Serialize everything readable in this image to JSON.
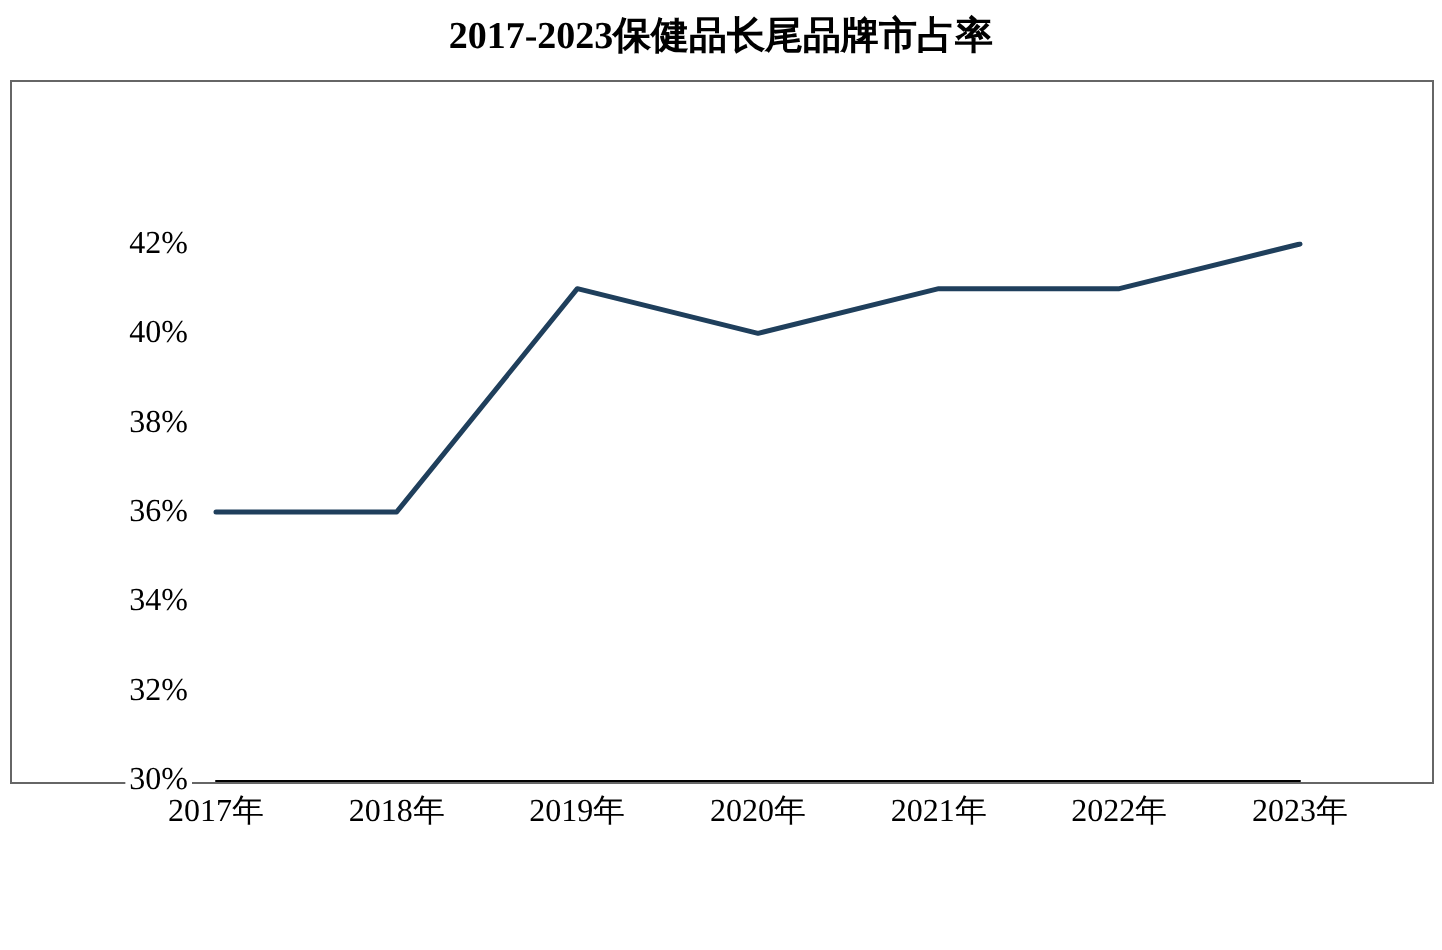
{
  "chart_data": {
    "type": "line",
    "title": "2017-2023保健品长尾品牌市占率",
    "categories": [
      "2017年",
      "2018年",
      "2019年",
      "2020年",
      "2021年",
      "2022年",
      "2023年"
    ],
    "series": [
      {
        "color": "#1f3f5c",
        "values": [
          36,
          36,
          41,
          40,
          41,
          41,
          42
        ]
      }
    ],
    "ylim": [
      30,
      42
    ],
    "yticks": [
      {
        "value": 30,
        "label": "30%"
      },
      {
        "value": 32,
        "label": "32%"
      },
      {
        "value": 34,
        "label": "34%"
      },
      {
        "value": 36,
        "label": "36%"
      },
      {
        "value": 38,
        "label": "38%"
      },
      {
        "value": 40,
        "label": "40%"
      },
      {
        "value": 42,
        "label": "42%"
      }
    ],
    "marker": "none",
    "line_style": "solid"
  }
}
